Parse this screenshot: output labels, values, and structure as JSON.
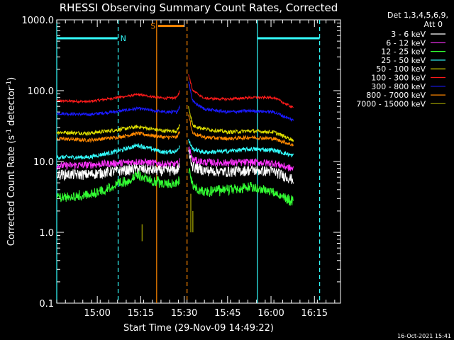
{
  "chart_data": {
    "type": "line",
    "title": "RHESSI Observing Summary Count Rates, Corrected",
    "xlabel": "Start Time (29-Nov-09 14:49:22)",
    "ylabel_main": "Corrected Count Rate (s",
    "ylabel_sup1": "-1",
    "ylabel_mid": " detector",
    "ylabel_sup2": "-1",
    "ylabel_end": ")",
    "footer": "16-Oct-2021 15:41",
    "x_range_min": [
      -3,
      79
    ],
    "y_scale": "log",
    "ylim": [
      0.1,
      1000
    ],
    "y_ticks": [
      {
        "v": 1000,
        "label": "1000.0"
      },
      {
        "v": 100,
        "label": "100.0"
      },
      {
        "v": 10,
        "label": "10.0"
      },
      {
        "v": 1,
        "label": "1.0"
      },
      {
        "v": 0.1,
        "label": "0.1"
      }
    ],
    "x_ticks": [
      {
        "v": 11,
        "label": "15:00"
      },
      {
        "v": 26,
        "label": "15:15"
      },
      {
        "v": 41,
        "label": "15:30"
      },
      {
        "v": 56,
        "label": "15:45"
      },
      {
        "v": 71,
        "label": "16:00"
      },
      {
        "v": 86,
        "label": "16:15"
      }
    ],
    "legend_header": [
      "Det 1,3,4,5,6,9,",
      "Att 0"
    ],
    "legend_placement": "right",
    "series": [
      {
        "name": "3 - 6 keV",
        "color": "#ffffff"
      },
      {
        "name": "6 - 12 keV",
        "color": "#ff33ff"
      },
      {
        "name": "12 - 25 keV",
        "color": "#33ff33"
      },
      {
        "name": "25 - 50 keV",
        "color": "#33ffff"
      },
      {
        "name": "50 - 100 keV",
        "color": "#dddd00"
      },
      {
        "name": "100 - 300 keV",
        "color": "#ff1a1a"
      },
      {
        "name": "300 - 800 keV",
        "color": "#1a1aff"
      },
      {
        "name": "800 - 7000 keV",
        "color": "#ff8800"
      },
      {
        "name": "7000 - 15000 keV",
        "color": "#888800"
      }
    ],
    "panels": [
      {
        "x0": -3,
        "x1": 39.5,
        "profiles": [
          {
            "series": 5,
            "y": [
              [
                -3,
                72
              ],
              [
                8,
                70
              ],
              [
                18,
                80
              ],
              [
                25,
                88
              ],
              [
                34,
                78
              ],
              [
                38.5,
                80
              ],
              [
                39.5,
                100
              ]
            ]
          },
          {
            "series": 6,
            "y": [
              [
                -3,
                48
              ],
              [
                8,
                46
              ],
              [
                18,
                51
              ],
              [
                25,
                56
              ],
              [
                34,
                50
              ],
              [
                38.5,
                50
              ],
              [
                39.5,
                60
              ]
            ]
          },
          {
            "series": 4,
            "y": [
              [
                -3,
                26
              ],
              [
                8,
                25
              ],
              [
                18,
                28
              ],
              [
                25,
                31
              ],
              [
                34,
                27
              ],
              [
                38.5,
                27
              ],
              [
                39.5,
                33
              ]
            ]
          },
          {
            "series": 7,
            "y": [
              [
                -3,
                21
              ],
              [
                8,
                20
              ],
              [
                18,
                22
              ],
              [
                25,
                25
              ],
              [
                34,
                22
              ],
              [
                38.5,
                22
              ],
              [
                39.5,
                27
              ]
            ]
          },
          {
            "series": 3,
            "y": [
              [
                -3,
                11.5
              ],
              [
                8,
                11.5
              ],
              [
                18,
                14
              ],
              [
                25,
                17
              ],
              [
                34,
                13.5
              ],
              [
                38.5,
                14
              ],
              [
                39.5,
                17
              ]
            ]
          },
          {
            "series": 1,
            "y": [
              [
                -3,
                8.7
              ],
              [
                8,
                9
              ],
              [
                18,
                9.5
              ],
              [
                25,
                10
              ],
              [
                34,
                9.2
              ],
              [
                38.5,
                9.2
              ],
              [
                39.5,
                10
              ]
            ]
          },
          {
            "series": 0,
            "y": [
              [
                -3,
                6.6
              ],
              [
                8,
                6.6
              ],
              [
                18,
                7.4
              ],
              [
                25,
                7.9
              ],
              [
                34,
                7.4
              ],
              [
                38.5,
                7.6
              ],
              [
                39.5,
                8.5
              ]
            ]
          },
          {
            "series": 2,
            "y": [
              [
                -3,
                3.7
              ],
              [
                8,
                4
              ],
              [
                18,
                5.6
              ],
              [
                25,
                7.5
              ],
              [
                34,
                5.8
              ],
              [
                38.5,
                6
              ],
              [
                39.5,
                6.5
              ]
            ]
          }
        ]
      },
      {
        "x0": 42.5,
        "x1": 78.8,
        "profiles": [
          {
            "series": 5,
            "y": [
              [
                42.5,
                170
              ],
              [
                44,
                100
              ],
              [
                48,
                78
              ],
              [
                56,
                76
              ],
              [
                64,
                80
              ],
              [
                72,
                80
              ],
              [
                78.8,
                57
              ]
            ]
          },
          {
            "series": 6,
            "y": [
              [
                42.5,
                140
              ],
              [
                44,
                70
              ],
              [
                48,
                55
              ],
              [
                56,
                50
              ],
              [
                64,
                52
              ],
              [
                72,
                50
              ],
              [
                78.8,
                38
              ]
            ]
          },
          {
            "series": 4,
            "y": [
              [
                42.5,
                60
              ],
              [
                44,
                32
              ],
              [
                48,
                29
              ],
              [
                56,
                26
              ],
              [
                64,
                27
              ],
              [
                72,
                26
              ],
              [
                78.8,
                20
              ]
            ]
          },
          {
            "series": 7,
            "y": [
              [
                42.5,
                45
              ],
              [
                44,
                25
              ],
              [
                48,
                22
              ],
              [
                56,
                21
              ],
              [
                64,
                22
              ],
              [
                72,
                21
              ],
              [
                78.8,
                17
              ]
            ]
          },
          {
            "series": 3,
            "y": [
              [
                42.5,
                20
              ],
              [
                44,
                15
              ],
              [
                48,
                13.5
              ],
              [
                56,
                14
              ],
              [
                64,
                15
              ],
              [
                72,
                14.5
              ],
              [
                78.8,
                12
              ]
            ]
          },
          {
            "series": 1,
            "y": [
              [
                42.5,
                16
              ],
              [
                44,
                10.5
              ],
              [
                48,
                9.8
              ],
              [
                56,
                9.6
              ],
              [
                64,
                9.8
              ],
              [
                72,
                9.5
              ],
              [
                78.8,
                7.8
              ]
            ]
          },
          {
            "series": 0,
            "y": [
              [
                42.5,
                14
              ],
              [
                44,
                8.5
              ],
              [
                48,
                7.5
              ],
              [
                56,
                7.2
              ],
              [
                64,
                7.6
              ],
              [
                72,
                7.3
              ],
              [
                78.8,
                5.5
              ]
            ]
          },
          {
            "series": 2,
            "y": [
              [
                42.5,
                10
              ],
              [
                44,
                5.5
              ],
              [
                48,
                4.5
              ],
              [
                56,
                4.7
              ],
              [
                64,
                5.2
              ],
              [
                72,
                4.5
              ],
              [
                78.8,
                3.2
              ]
            ]
          }
        ]
      }
    ],
    "transients": [
      {
        "series": 8,
        "x": 26.5,
        "y": [
          0.75,
          1.3
        ]
      },
      {
        "series": 8,
        "x": 43.3,
        "y": [
          1.0,
          3.5
        ]
      },
      {
        "series": 8,
        "x": 44.0,
        "y": [
          1.0,
          2.0
        ]
      }
    ],
    "flags": [
      {
        "label": "N",
        "color": "#33ffff",
        "x0": -3,
        "x1": 18,
        "y": 550
      },
      {
        "label": "",
        "color": "#33ffff",
        "x0": 66.3,
        "x1": 87.8,
        "y": 550
      },
      {
        "label": "S",
        "color": "#ff8800",
        "x0": 32,
        "x1": 41,
        "y": 820
      }
    ],
    "event_lines": [
      {
        "x": -3,
        "color": "#33ffff",
        "style": "solid"
      },
      {
        "x": 18.2,
        "color": "#33ffff",
        "style": "dashed"
      },
      {
        "x": 66.3,
        "color": "#33ffff",
        "style": "solid"
      },
      {
        "x": 87.8,
        "color": "#33ffff",
        "style": "dashed"
      },
      {
        "x": 31.5,
        "color": "#ff8800",
        "style": "solid"
      },
      {
        "x": 42.0,
        "color": "#ff8800",
        "style": "dashed"
      }
    ]
  }
}
